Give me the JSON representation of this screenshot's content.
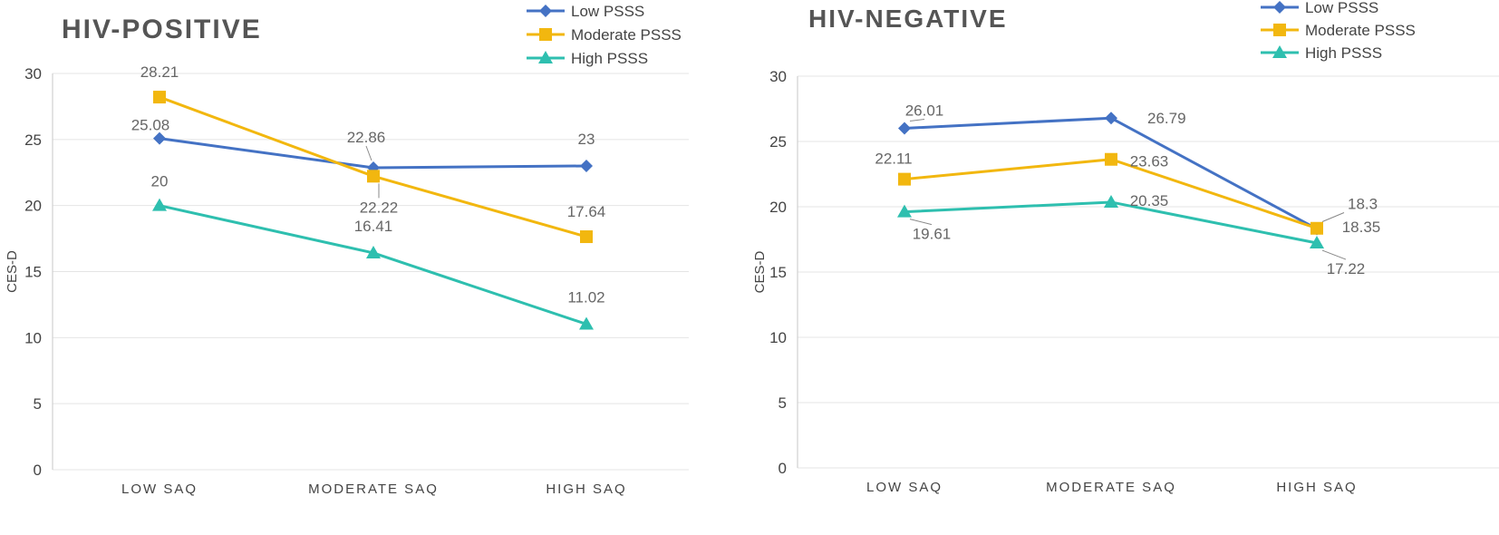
{
  "chart_data": [
    {
      "type": "line",
      "title": "HIV-POSITIVE",
      "ylabel": "CES-D",
      "xlabel": "",
      "ylim": [
        0,
        30
      ],
      "yticks": [
        0,
        5,
        10,
        15,
        20,
        25,
        30
      ],
      "categories": [
        "LOW SAQ",
        "MODERATE SAQ",
        "HIGH SAQ"
      ],
      "series": [
        {
          "name": "Low PSSS",
          "color": "#4472C4",
          "marker": "diamond",
          "values": [
            25.08,
            22.86,
            23
          ]
        },
        {
          "name": "Moderate PSSS",
          "color": "#F2B70F",
          "marker": "square",
          "values": [
            28.21,
            22.22,
            17.64
          ]
        },
        {
          "name": "High PSSS",
          "color": "#2EBFAF",
          "marker": "triangle",
          "values": [
            20,
            16.41,
            11.02
          ]
        }
      ],
      "data_labels": [
        [
          "25.08",
          "22.86",
          "23"
        ],
        [
          "28.21",
          "22.22",
          "17.64"
        ],
        [
          "20",
          "16.41",
          "11.02"
        ]
      ],
      "grid": true,
      "legend": "top-right"
    },
    {
      "type": "line",
      "title": "HIV-NEGATIVE",
      "ylabel": "CES-D",
      "xlabel": "",
      "ylim": [
        0,
        30
      ],
      "yticks": [
        0,
        5,
        10,
        15,
        20,
        25,
        30
      ],
      "categories": [
        "LOW SAQ",
        "MODERATE SAQ",
        "HIGH SAQ"
      ],
      "series": [
        {
          "name": "Low PSSS",
          "color": "#4472C4",
          "marker": "diamond",
          "values": [
            26.01,
            26.79,
            18.3
          ]
        },
        {
          "name": "Moderate PSSS",
          "color": "#F2B70F",
          "marker": "square",
          "values": [
            22.11,
            23.63,
            18.35
          ]
        },
        {
          "name": "High PSSS",
          "color": "#2EBFAF",
          "marker": "triangle",
          "values": [
            19.61,
            20.35,
            17.22
          ]
        }
      ],
      "data_labels": [
        [
          "26.01",
          "26.79",
          "18.3"
        ],
        [
          "22.11",
          "23.63",
          "18.35"
        ],
        [
          "19.61",
          "20.35",
          "17.22"
        ]
      ],
      "grid": true,
      "legend": "top-right"
    }
  ]
}
